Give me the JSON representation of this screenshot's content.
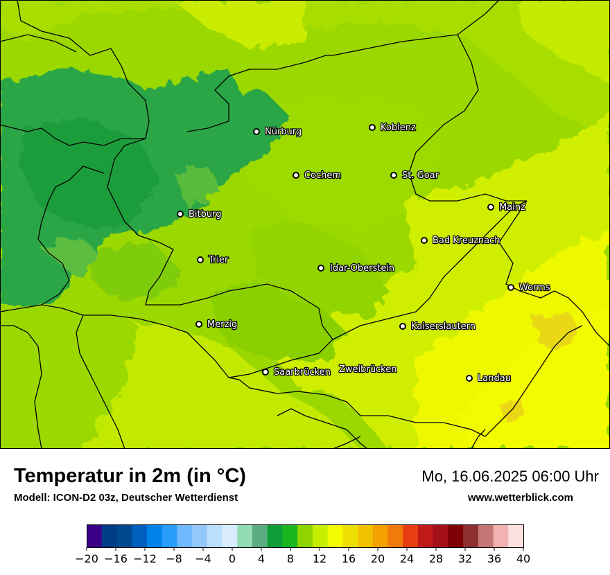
{
  "title": "Temperatur in 2m (in °C)",
  "model": "Modell: ICON-D2 03z, Deutscher Wetterdienst",
  "datetime": "Mo, 16.06.2025 06:00 Uhr",
  "website": "www.wetterblick.com",
  "cities": [
    {
      "name": "Nürburg"
    },
    {
      "name": "Koblenz"
    },
    {
      "name": "Cochem"
    },
    {
      "name": "St. Goar"
    },
    {
      "name": "Mainz"
    },
    {
      "name": "Bitburg"
    },
    {
      "name": "Bad Kreuznach"
    },
    {
      "name": "Trier"
    },
    {
      "name": "Idar-Oberstein"
    },
    {
      "name": "Worms"
    },
    {
      "name": "Merzig"
    },
    {
      "name": "Kaiserslautern"
    },
    {
      "name": "Saarbrücken"
    },
    {
      "name": "Zweibrücken"
    },
    {
      "name": "Landau"
    }
  ],
  "legend": {
    "ticks": [
      "−20",
      "−16",
      "−12",
      "−8",
      "−4",
      "0",
      "4",
      "8",
      "12",
      "16",
      "20",
      "24",
      "28",
      "32",
      "36",
      "40"
    ],
    "colors": [
      "#3a0086",
      "#003c85",
      "#004991",
      "#005fbe",
      "#0083e8",
      "#2a9cf9",
      "#6eb8fb",
      "#93c9f9",
      "#bcdffb",
      "#d9ecfc",
      "#93dbb5",
      "#5cac81",
      "#0f9e37",
      "#1cb61e",
      "#8fd400",
      "#c6ee00",
      "#f2fb00",
      "#ede000",
      "#f1c100",
      "#f2a100",
      "#f17a0b",
      "#e73d10",
      "#bf1918",
      "#a3101a",
      "#7e0004",
      "#8e2f2f",
      "#c47576",
      "#f1b2b2",
      "#fde0e0"
    ]
  },
  "colors": {
    "dark_green": "#29a545",
    "mid_green": "#8fd400",
    "light_green": "#a9dc06",
    "yellow_green": "#d3f000",
    "yellow": "#f2fb00",
    "orange_yellow": "#f0dc14"
  }
}
